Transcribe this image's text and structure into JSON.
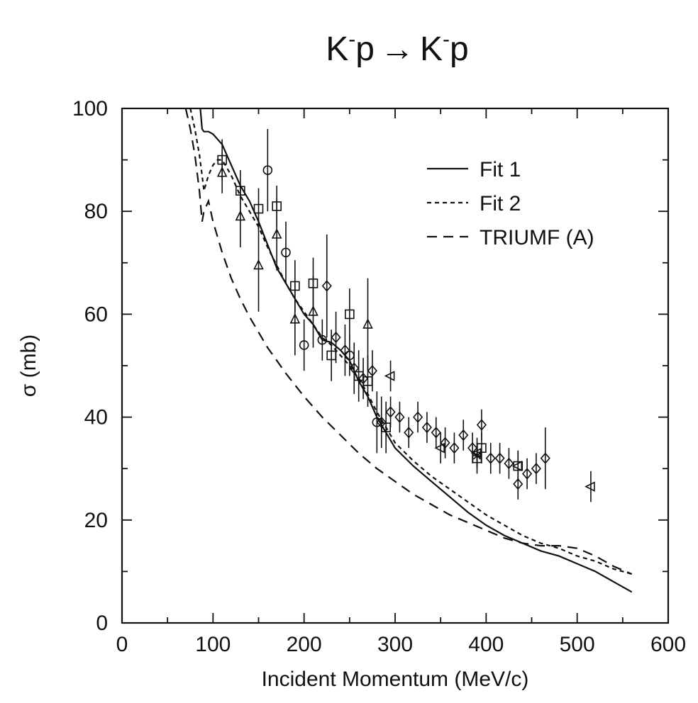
{
  "chart_data": {
    "type": "scatter",
    "title": {
      "k1": "K",
      "sup1": "-",
      "p1": "p",
      "arrow": "→",
      "k2": "K",
      "sup2": "-",
      "p2": "p"
    },
    "xlabel": "Incident Momentum (MeV/c)",
    "ylabel": "σ (mb)",
    "xlim": [
      0,
      600
    ],
    "ylim": [
      0,
      100
    ],
    "xticks": [
      0,
      100,
      200,
      300,
      400,
      500,
      600
    ],
    "yticks": [
      0,
      20,
      40,
      60,
      80,
      100
    ],
    "grid": false,
    "legend_position": "top-right",
    "series": [
      {
        "name": "Fit 1",
        "kind": "line",
        "dash": "solid",
        "x": [
          86,
          88,
          90,
          95,
          100,
          110,
          120,
          130,
          140,
          150,
          160,
          170,
          180,
          190,
          200,
          210,
          220,
          230,
          240,
          250,
          260,
          270,
          280,
          290,
          300,
          320,
          340,
          360,
          380,
          400,
          420,
          440,
          460,
          480,
          500,
          520,
          540,
          560
        ],
        "y": [
          100,
          96,
          95.5,
          95.5,
          95,
          93,
          89,
          85,
          82,
          78,
          73.5,
          69,
          66,
          63,
          60,
          58,
          55,
          54.5,
          53,
          51,
          47,
          44,
          40,
          37,
          34,
          30.5,
          27.5,
          24.5,
          21.5,
          19,
          17,
          15.5,
          14,
          13,
          11.5,
          10,
          8,
          6
        ]
      },
      {
        "name": "Fit 2",
        "kind": "line",
        "dash": "short",
        "x": [
          75,
          80,
          85,
          88,
          90,
          95,
          100,
          105,
          110,
          120,
          130,
          140,
          150,
          160,
          170,
          180,
          190,
          200,
          210,
          220,
          230,
          240,
          250,
          260,
          270,
          280,
          290,
          300,
          320,
          340,
          360,
          380,
          400,
          420,
          440,
          460,
          480,
          500,
          520,
          540,
          560
        ],
        "y": [
          100,
          96,
          91,
          87,
          84,
          87,
          89,
          90,
          90,
          87,
          83,
          80,
          77,
          73,
          69.5,
          66,
          63,
          60.5,
          58,
          55.5,
          54,
          52,
          50,
          47.5,
          44.5,
          41,
          38,
          35,
          31.5,
          28.5,
          26,
          23.5,
          21,
          19,
          17,
          15.5,
          14.5,
          13,
          12,
          10.5,
          9.5
        ]
      },
      {
        "name": "TRIUMF (A)",
        "kind": "line",
        "dash": "long",
        "x": [
          70,
          75,
          80,
          85,
          88,
          90,
          95,
          100,
          110,
          120,
          130,
          140,
          150,
          160,
          170,
          180,
          200,
          220,
          240,
          260,
          280,
          300,
          320,
          340,
          360,
          380,
          400,
          420,
          440,
          460,
          480,
          500,
          520,
          540,
          560
        ],
        "y": [
          100,
          96,
          91,
          84,
          78,
          80,
          82,
          78,
          72,
          67,
          63,
          59.5,
          56.5,
          53.5,
          51,
          48.5,
          44,
          40,
          36.5,
          33,
          30,
          27.5,
          25,
          23,
          21,
          19.5,
          18,
          16.5,
          15.5,
          15,
          15,
          14.5,
          13,
          11,
          9.5
        ]
      },
      {
        "name": "",
        "kind": "points",
        "marker": "square",
        "points": [
          [
            110,
            90,
            4
          ],
          [
            130,
            84,
            4
          ],
          [
            150,
            80.5,
            4
          ],
          [
            170,
            81,
            4
          ],
          [
            190,
            65.5,
            5
          ],
          [
            210,
            66,
            5
          ],
          [
            230,
            52,
            5
          ],
          [
            250,
            60,
            5
          ],
          [
            260,
            48,
            5
          ],
          [
            270,
            47,
            5
          ],
          [
            290,
            38,
            5
          ],
          [
            390,
            32,
            3
          ],
          [
            395,
            34,
            3
          ],
          [
            435,
            30.5,
            3
          ]
        ]
      },
      {
        "name": "",
        "kind": "points",
        "marker": "triangle-up",
        "points": [
          [
            110,
            87.5,
            4
          ],
          [
            130,
            79,
            6
          ],
          [
            150,
            69.5,
            9
          ],
          [
            170,
            75.5,
            7
          ],
          [
            190,
            59,
            7
          ],
          [
            210,
            60.5,
            7
          ],
          [
            270,
            58,
            9
          ]
        ]
      },
      {
        "name": "",
        "kind": "points",
        "marker": "circle",
        "points": [
          [
            160,
            88,
            8
          ],
          [
            180,
            72,
            6
          ],
          [
            200,
            54,
            5
          ],
          [
            220,
            55,
            4
          ],
          [
            250,
            52,
            4
          ],
          [
            280,
            39,
            6
          ]
        ]
      },
      {
        "name": "",
        "kind": "points",
        "marker": "diamond",
        "points": [
          [
            225,
            65.5,
            10
          ],
          [
            235,
            55.5,
            5
          ],
          [
            245,
            53,
            5
          ],
          [
            255,
            49.5,
            5
          ],
          [
            265,
            47.5,
            4
          ],
          [
            275,
            49,
            4
          ],
          [
            285,
            39,
            5
          ],
          [
            295,
            41,
            3
          ],
          [
            305,
            40,
            3
          ],
          [
            315,
            37,
            3
          ],
          [
            325,
            40,
            3
          ],
          [
            335,
            38,
            3
          ],
          [
            345,
            37,
            3
          ],
          [
            355,
            35,
            3
          ],
          [
            365,
            34,
            3
          ],
          [
            375,
            36.5,
            3
          ],
          [
            385,
            34,
            3
          ],
          [
            395,
            38.5,
            3
          ],
          [
            405,
            32,
            3
          ],
          [
            415,
            32,
            3
          ],
          [
            425,
            31,
            3
          ],
          [
            435,
            27,
            3
          ],
          [
            445,
            29,
            3
          ],
          [
            455,
            30,
            3
          ],
          [
            465,
            32,
            6
          ]
        ]
      },
      {
        "name": "",
        "kind": "points",
        "marker": "triangle-left",
        "points": [
          [
            295,
            48,
            3
          ],
          [
            350,
            34,
            3
          ],
          [
            390,
            33,
            3
          ],
          [
            435,
            30.5,
            3
          ],
          [
            515,
            26.5,
            3
          ]
        ]
      },
      {
        "name": "",
        "kind": "points",
        "marker": "star",
        "points": [
          [
            390,
            32.5,
            2
          ]
        ]
      }
    ]
  }
}
